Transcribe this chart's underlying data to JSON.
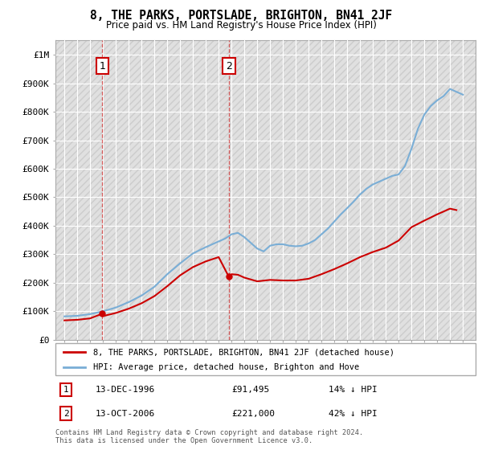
{
  "title": "8, THE PARKS, PORTSLADE, BRIGHTON, BN41 2JF",
  "subtitle": "Price paid vs. HM Land Registry's House Price Index (HPI)",
  "background_color": "#ffffff",
  "plot_bg_color": "#ebebeb",
  "grid_color": "#ffffff",
  "sale1_date": 1996.95,
  "sale1_price": 91495,
  "sale1_label": "1",
  "sale2_date": 2006.79,
  "sale2_price": 221000,
  "sale2_label": "2",
  "red_line_color": "#cc0000",
  "blue_line_color": "#7aaed6",
  "xlim_min": 1993.3,
  "xlim_max": 2026.0,
  "ylim_min": 0,
  "ylim_max": 1050000,
  "legend_label_red": "8, THE PARKS, PORTSLADE, BRIGHTON, BN41 2JF (detached house)",
  "legend_label_blue": "HPI: Average price, detached house, Brighton and Hove",
  "footnote": "Contains HM Land Registry data © Crown copyright and database right 2024.\nThis data is licensed under the Open Government Licence v3.0.",
  "yticks": [
    0,
    100000,
    200000,
    300000,
    400000,
    500000,
    600000,
    700000,
    800000,
    900000,
    1000000
  ],
  "ytick_labels": [
    "£0",
    "£100K",
    "£200K",
    "£300K",
    "£400K",
    "£500K",
    "£600K",
    "£700K",
    "£800K",
    "£900K",
    "£1M"
  ],
  "hpi_years": [
    1994,
    1995,
    1996,
    1997,
    1998,
    1999,
    2000,
    2001,
    2002,
    2003,
    2004,
    2005,
    2006,
    2006.5,
    2007,
    2007.5,
    2008,
    2009,
    2009.5,
    2010,
    2010.5,
    2011,
    2011.5,
    2012,
    2012.5,
    2013,
    2013.5,
    2014,
    2014.5,
    2015,
    2015.5,
    2016,
    2016.5,
    2017,
    2017.5,
    2018,
    2018.5,
    2019,
    2019.5,
    2020,
    2020.5,
    2021,
    2021.5,
    2022,
    2022.5,
    2023,
    2023.5,
    2024,
    2024.5,
    2025
  ],
  "hpi_values": [
    82000,
    84000,
    90000,
    100000,
    113000,
    132000,
    155000,
    186000,
    230000,
    268000,
    303000,
    325000,
    345000,
    355000,
    370000,
    375000,
    360000,
    320000,
    310000,
    330000,
    335000,
    335000,
    330000,
    328000,
    330000,
    338000,
    350000,
    370000,
    390000,
    415000,
    440000,
    462000,
    485000,
    510000,
    530000,
    545000,
    555000,
    565000,
    575000,
    580000,
    610000,
    670000,
    740000,
    790000,
    820000,
    840000,
    855000,
    880000,
    870000,
    860000
  ],
  "red_years": [
    1994,
    1995,
    1996,
    1996.95,
    1997,
    1998,
    1999,
    2000,
    2001,
    2002,
    2003,
    2004,
    2005,
    2006,
    2006.79,
    2007,
    2007.5,
    2008,
    2009,
    2010,
    2011,
    2012,
    2013,
    2014,
    2015,
    2016,
    2017,
    2018,
    2019,
    2020,
    2021,
    2022,
    2023,
    2024,
    2024.5
  ],
  "red_values": [
    68000,
    70000,
    75000,
    91495,
    83000,
    94000,
    109000,
    128000,
    153000,
    188000,
    226000,
    255000,
    275000,
    290000,
    221000,
    230000,
    228000,
    218000,
    205000,
    210000,
    208000,
    208000,
    214000,
    230000,
    248000,
    268000,
    290000,
    308000,
    323000,
    348000,
    395000,
    418000,
    440000,
    460000,
    455000
  ]
}
